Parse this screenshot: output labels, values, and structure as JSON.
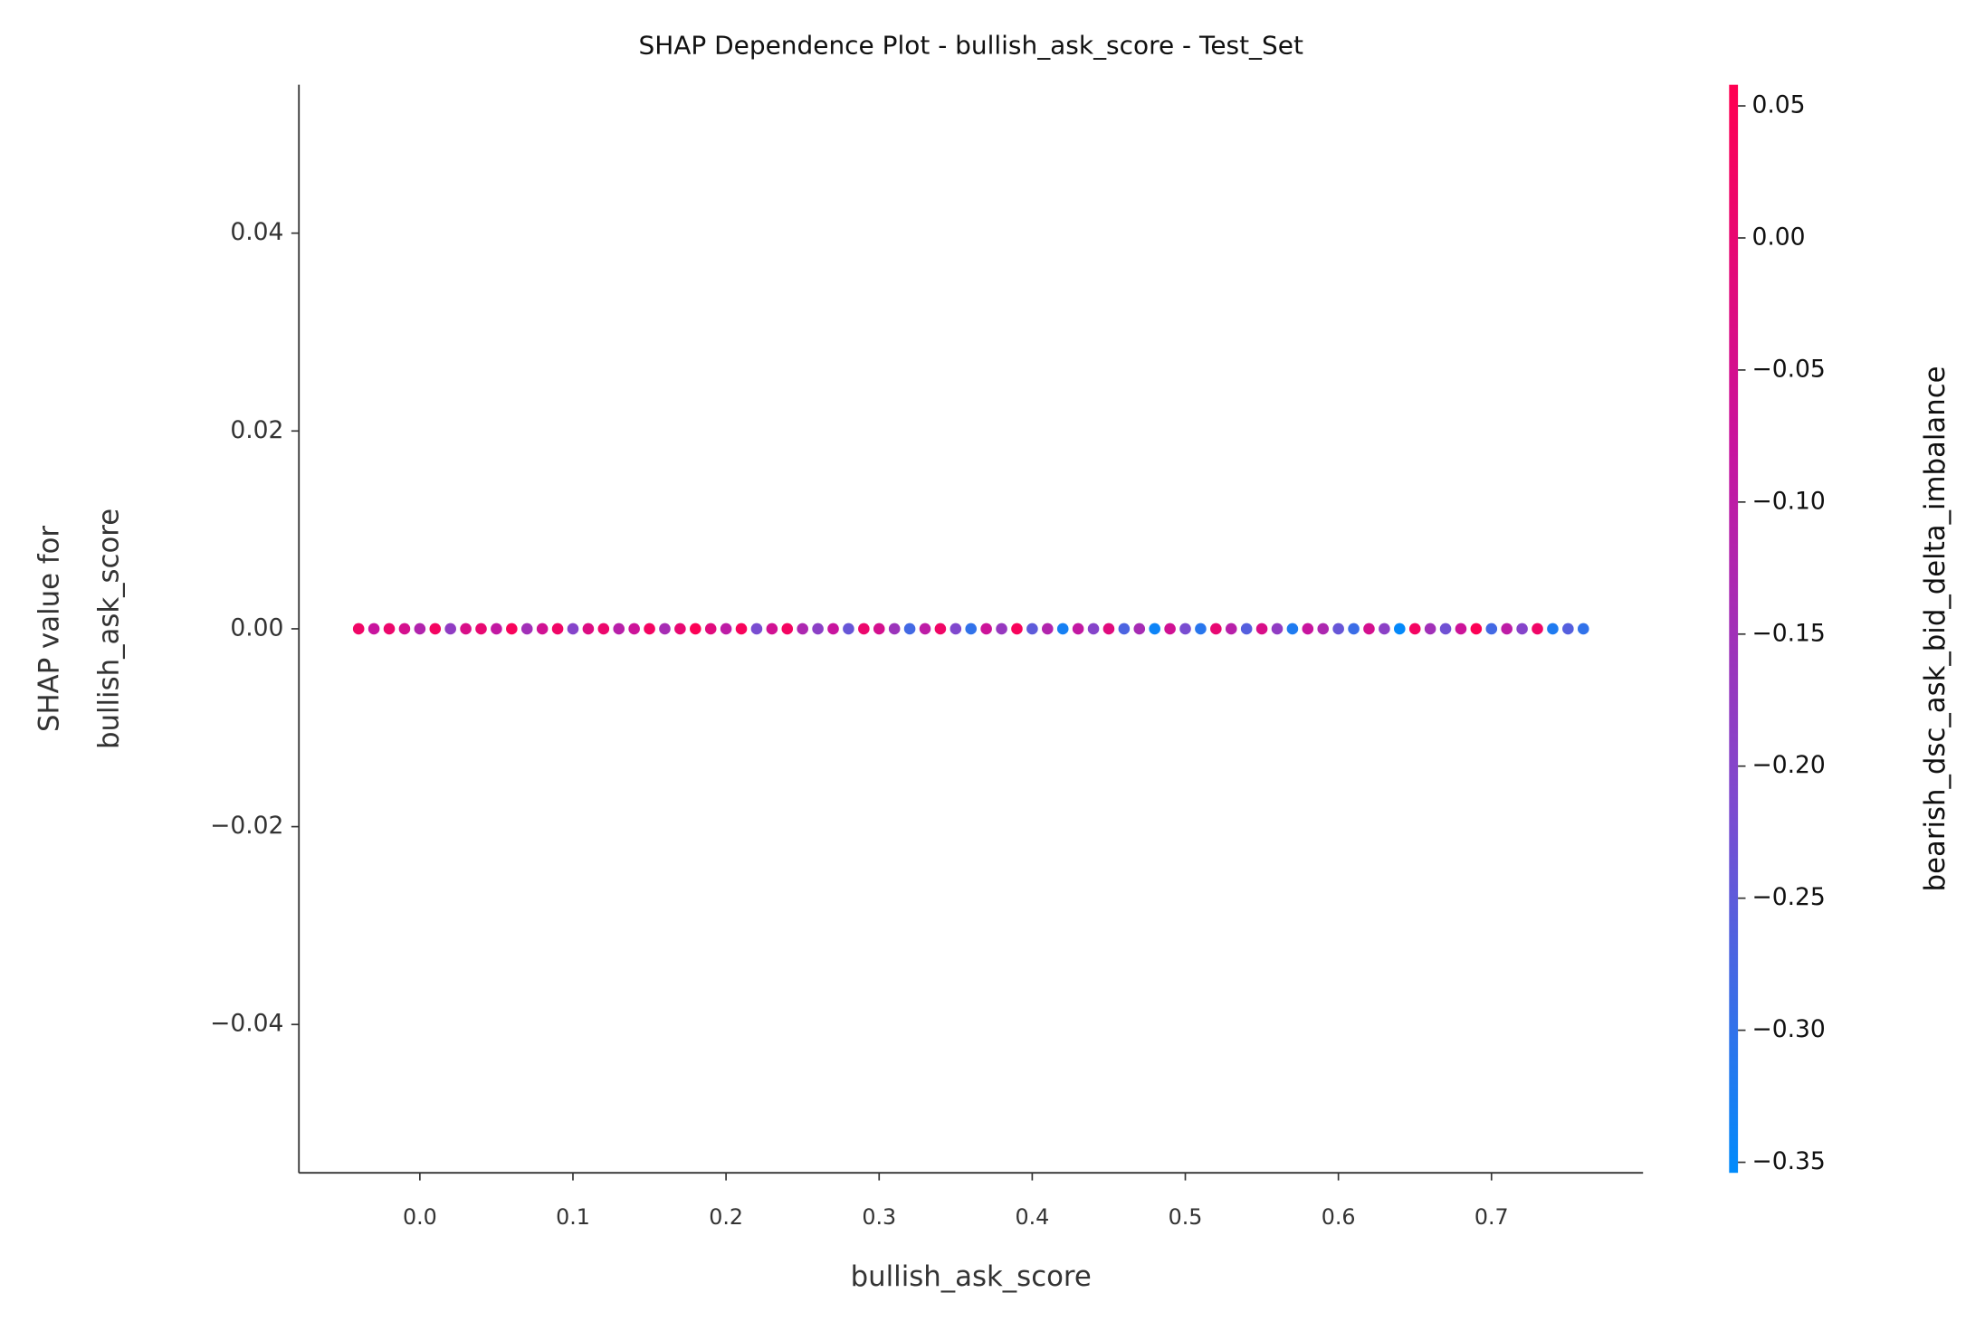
{
  "chart_data": {
    "type": "scatter",
    "title": "SHAP Dependence Plot - bullish_ask_score - Test_Set",
    "xlabel": "bullish_ask_score",
    "ylabel": [
      "SHAP value for",
      "bullish_ask_score"
    ],
    "colorbar_label": "bearish_dsc_ask_bid_delta_imbalance",
    "xlim": [
      -0.079,
      0.799
    ],
    "ylim": [
      -0.055,
      0.055
    ],
    "clim": [
      -0.354,
      0.058
    ],
    "xticks": [
      {
        "value": 0,
        "label": "0.0"
      },
      0.1,
      0.2,
      0.3,
      0.4,
      0.5,
      0.6,
      0.7
    ],
    "yticks": [
      {
        "value": -0.04,
        "label": "−0.04"
      },
      {
        "value": -0.02,
        "label": "−0.02"
      },
      {
        "value": 0,
        "label": "0.00"
      },
      0.02,
      0.04
    ],
    "cticks": [
      {
        "value": -0.35,
        "label": "−0.35"
      },
      {
        "value": -0.3,
        "label": "−0.30"
      },
      {
        "value": -0.25,
        "label": "−0.25"
      },
      {
        "value": -0.2,
        "label": "−0.20"
      },
      {
        "value": -0.15,
        "label": "−0.15"
      },
      {
        "value": -0.1,
        "label": "−0.10"
      },
      {
        "value": -0.05,
        "label": "−0.05"
      },
      {
        "value": 0,
        "label": "0.00"
      },
      0.05
    ],
    "colormap": [
      "#008bfb",
      "#7c4bd0",
      "#c8149e",
      "#ff0051"
    ],
    "x": [
      -0.04,
      -0.03,
      -0.02,
      -0.01,
      0.0,
      0.01,
      0.02,
      0.03,
      0.04,
      0.05,
      0.06,
      0.07,
      0.08,
      0.09,
      0.1,
      0.11,
      0.12,
      0.13,
      0.14,
      0.15,
      0.16,
      0.17,
      0.18,
      0.19,
      0.2,
      0.21,
      0.22,
      0.23,
      0.24,
      0.25,
      0.26,
      0.27,
      0.28,
      0.29,
      0.3,
      0.31,
      0.32,
      0.33,
      0.34,
      0.35,
      0.36,
      0.37,
      0.38,
      0.39,
      0.4,
      0.41,
      0.42,
      0.43,
      0.44,
      0.45,
      0.46,
      0.47,
      0.48,
      0.49,
      0.5,
      0.51,
      0.52,
      0.53,
      0.54,
      0.55,
      0.56,
      0.57,
      0.58,
      0.59,
      0.6,
      0.61,
      0.62,
      0.63,
      0.64,
      0.65,
      0.66,
      0.67,
      0.68,
      0.69,
      0.7,
      0.71,
      0.72,
      0.73,
      0.74,
      0.75,
      0.76
    ],
    "series": [
      {
        "values": [
          0,
          0,
          0,
          0,
          0,
          0,
          0,
          0,
          0,
          0,
          0,
          0,
          0,
          0,
          0,
          0,
          0,
          0,
          0,
          0,
          0,
          0,
          0,
          0,
          0,
          0,
          0,
          0,
          0,
          0,
          0,
          0,
          0,
          0,
          0,
          0,
          0,
          0,
          0,
          0,
          0,
          0,
          0,
          0,
          0,
          0,
          0,
          0,
          0,
          0,
          0,
          0,
          0,
          0,
          0,
          0,
          0,
          0,
          0,
          0,
          0,
          0,
          0,
          0,
          0,
          0,
          0,
          0,
          0,
          0,
          0,
          0,
          0,
          0,
          0,
          0,
          0,
          0,
          0,
          0,
          0
        ],
        "color_values": [
          0.02,
          -0.08,
          0.01,
          -0.05,
          -0.12,
          0.03,
          -0.18,
          -0.04,
          0.0,
          -0.09,
          0.04,
          -0.15,
          -0.06,
          0.02,
          -0.2,
          -0.03,
          0.01,
          -0.11,
          -0.07,
          0.03,
          -0.14,
          0.0,
          0.05,
          -0.02,
          -0.1,
          0.04,
          -0.22,
          -0.06,
          0.03,
          -0.13,
          -0.19,
          -0.08,
          -0.24,
          0.01,
          -0.05,
          -0.16,
          -0.28,
          -0.1,
          0.02,
          -0.21,
          -0.3,
          -0.07,
          -0.17,
          0.04,
          -0.25,
          -0.12,
          -0.33,
          -0.09,
          -0.2,
          -0.02,
          -0.27,
          -0.14,
          -0.34,
          -0.06,
          -0.22,
          -0.31,
          0.0,
          -0.11,
          -0.26,
          -0.04,
          -0.18,
          -0.32,
          -0.08,
          -0.13,
          -0.24,
          -0.29,
          -0.05,
          -0.19,
          -0.35,
          0.03,
          -0.15,
          -0.23,
          -0.07,
          0.05,
          -0.28,
          -0.1,
          -0.2,
          0.02,
          -0.32,
          -0.26,
          -0.3
        ]
      }
    ]
  }
}
